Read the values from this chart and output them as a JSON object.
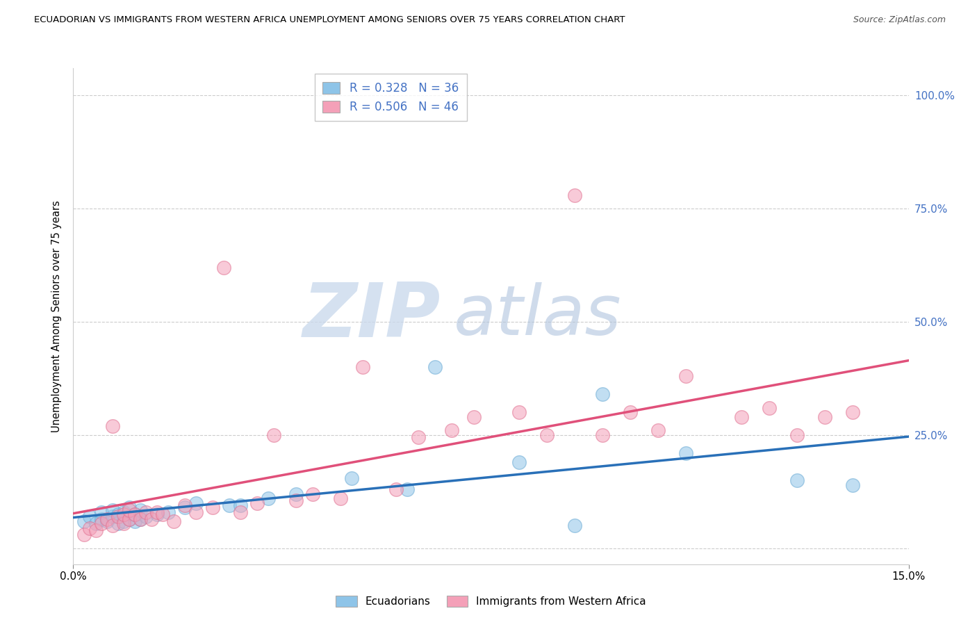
{
  "title": "ECUADORIAN VS IMMIGRANTS FROM WESTERN AFRICA UNEMPLOYMENT AMONG SENIORS OVER 75 YEARS CORRELATION CHART",
  "source": "Source: ZipAtlas.com",
  "ylabel": "Unemployment Among Seniors over 75 years",
  "watermark_zip": "ZIP",
  "watermark_atlas": "atlas",
  "series1_name": "Ecuadorians",
  "series1_color": "#8ec4e8",
  "series1_edge": "#6aaad4",
  "series1_R": 0.328,
  "series1_N": 36,
  "series2_name": "Immigrants from Western Africa",
  "series2_color": "#f4a0b8",
  "series2_edge": "#e07090",
  "series2_R": 0.506,
  "series2_N": 46,
  "trend1_color": "#2970b8",
  "trend2_color": "#e0507a",
  "xmin": 0.0,
  "xmax": 0.15,
  "ymin": -0.035,
  "ymax": 1.06,
  "ytick_vals": [
    0.0,
    0.25,
    0.5,
    0.75,
    1.0
  ],
  "ytick_labels_right": [
    "",
    "25.0%",
    "50.0%",
    "75.0%",
    "100.0%"
  ],
  "background_color": "#ffffff",
  "grid_color": "#cccccc",
  "ecuadorians_x": [
    0.002,
    0.003,
    0.004,
    0.005,
    0.005,
    0.006,
    0.007,
    0.007,
    0.008,
    0.008,
    0.009,
    0.009,
    0.01,
    0.01,
    0.011,
    0.011,
    0.012,
    0.012,
    0.013,
    0.015,
    0.017,
    0.02,
    0.022,
    0.028,
    0.03,
    0.035,
    0.04,
    0.05,
    0.06,
    0.065,
    0.08,
    0.09,
    0.095,
    0.11,
    0.13,
    0.14
  ],
  "ecuadorians_y": [
    0.06,
    0.07,
    0.055,
    0.065,
    0.08,
    0.06,
    0.07,
    0.085,
    0.055,
    0.075,
    0.06,
    0.08,
    0.065,
    0.09,
    0.06,
    0.075,
    0.065,
    0.085,
    0.07,
    0.075,
    0.08,
    0.09,
    0.1,
    0.095,
    0.095,
    0.11,
    0.12,
    0.155,
    0.13,
    0.4,
    0.19,
    0.05,
    0.34,
    0.21,
    0.15,
    0.14
  ],
  "immigrants_x": [
    0.002,
    0.003,
    0.004,
    0.005,
    0.006,
    0.007,
    0.007,
    0.008,
    0.009,
    0.009,
    0.01,
    0.01,
    0.011,
    0.012,
    0.013,
    0.014,
    0.015,
    0.016,
    0.018,
    0.02,
    0.022,
    0.025,
    0.027,
    0.03,
    0.033,
    0.036,
    0.04,
    0.043,
    0.048,
    0.052,
    0.058,
    0.062,
    0.068,
    0.072,
    0.08,
    0.085,
    0.09,
    0.095,
    0.1,
    0.105,
    0.11,
    0.12,
    0.125,
    0.13,
    0.135,
    0.14
  ],
  "immigrants_y": [
    0.03,
    0.045,
    0.04,
    0.055,
    0.065,
    0.05,
    0.27,
    0.07,
    0.055,
    0.075,
    0.065,
    0.085,
    0.075,
    0.065,
    0.08,
    0.065,
    0.08,
    0.075,
    0.06,
    0.095,
    0.08,
    0.09,
    0.62,
    0.08,
    0.1,
    0.25,
    0.105,
    0.12,
    0.11,
    0.4,
    0.13,
    0.245,
    0.26,
    0.29,
    0.3,
    0.25,
    0.78,
    0.25,
    0.3,
    0.26,
    0.38,
    0.29,
    0.31,
    0.25,
    0.29,
    0.3
  ]
}
